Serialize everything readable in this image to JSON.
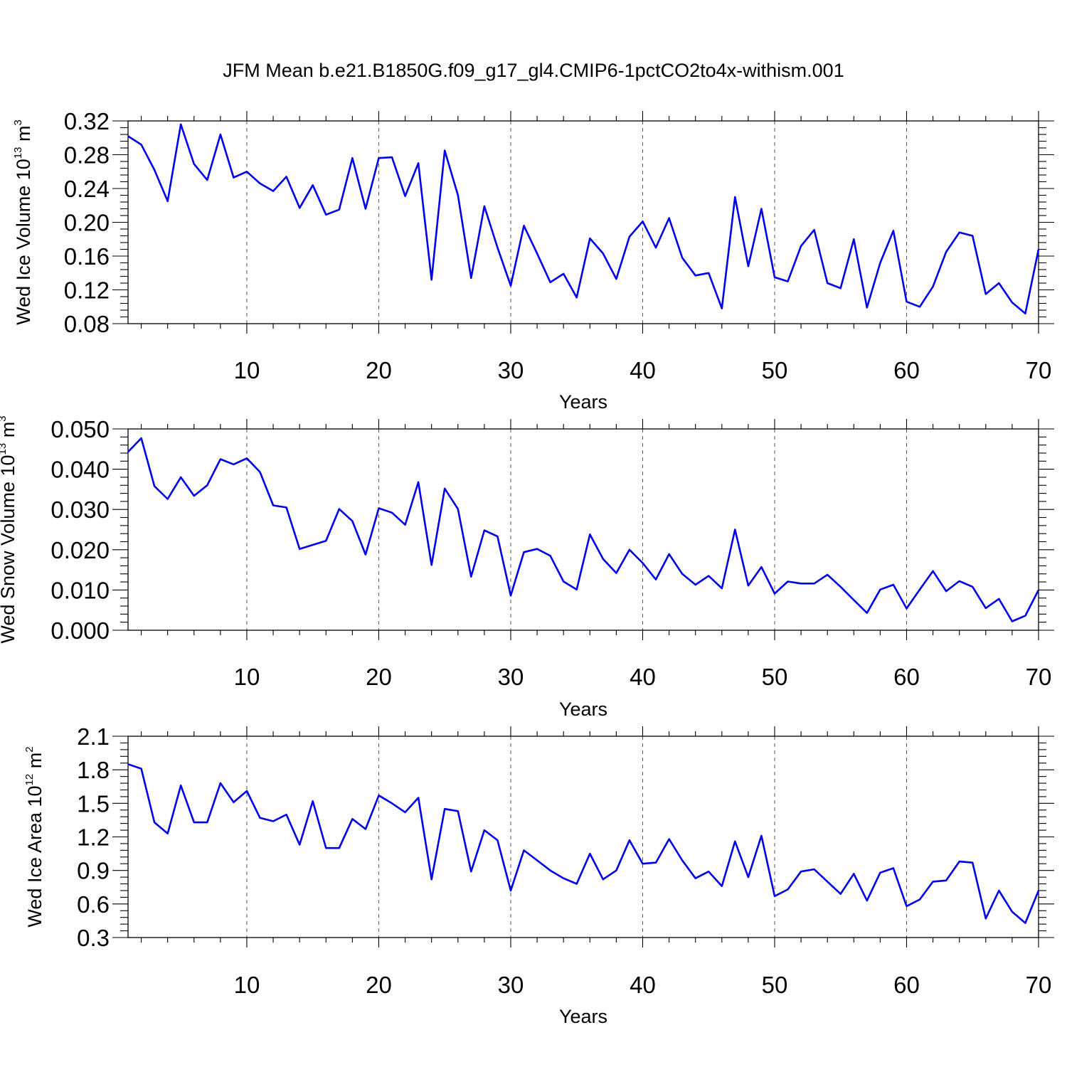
{
  "title": "JFM Mean b.e21.B1850G.f09_g17_gl4.CMIP6-1pctCO2to4x-withism.001",
  "line_color": "#0000ee",
  "chart_data": [
    {
      "type": "line",
      "ylabel": "Wed Ice Volume 10",
      "ylabel_exp": "13",
      "ylabel_unit": " m",
      "ylabel_unit_exp": "3",
      "xlabel": "Years",
      "xlim": [
        1,
        70
      ],
      "ylim": [
        0.08,
        0.32
      ],
      "x_ticks": [
        10,
        20,
        30,
        40,
        50,
        60,
        70
      ],
      "y_ticks": [
        "0.08",
        "0.12",
        "0.16",
        "0.20",
        "0.24",
        "0.28",
        "0.32"
      ],
      "grid": "dashed vertical at x ticks",
      "x": [
        1,
        2,
        3,
        4,
        5,
        6,
        7,
        8,
        9,
        10,
        11,
        12,
        13,
        14,
        15,
        16,
        17,
        18,
        19,
        20,
        21,
        22,
        23,
        24,
        25,
        26,
        27,
        28,
        29,
        30,
        31,
        32,
        33,
        34,
        35,
        36,
        37,
        38,
        39,
        40,
        41,
        42,
        43,
        44,
        45,
        46,
        47,
        48,
        49,
        50,
        51,
        52,
        53,
        54,
        55,
        56,
        57,
        58,
        59,
        60,
        61,
        62,
        63,
        64,
        65,
        66,
        67,
        68,
        69,
        70
      ],
      "values": [
        0.302,
        0.292,
        0.262,
        0.225,
        0.316,
        0.269,
        0.25,
        0.304,
        0.253,
        0.26,
        0.246,
        0.237,
        0.254,
        0.217,
        0.244,
        0.209,
        0.215,
        0.276,
        0.216,
        0.276,
        0.277,
        0.231,
        0.27,
        0.132,
        0.285,
        0.232,
        0.134,
        0.219,
        0.17,
        0.125,
        0.196,
        0.163,
        0.129,
        0.139,
        0.111,
        0.181,
        0.163,
        0.133,
        0.183,
        0.201,
        0.17,
        0.205,
        0.158,
        0.137,
        0.14,
        0.098,
        0.23,
        0.148,
        0.216,
        0.135,
        0.13,
        0.172,
        0.191,
        0.128,
        0.122,
        0.18,
        0.099,
        0.152,
        0.19,
        0.106,
        0.1,
        0.124,
        0.165,
        0.188,
        0.184,
        0.115,
        0.128,
        0.105,
        0.092,
        0.168
      ]
    },
    {
      "type": "line",
      "ylabel": "Wed Snow Volume 10",
      "ylabel_exp": "13",
      "ylabel_unit": " m",
      "ylabel_unit_exp": "3",
      "xlabel": "Years",
      "xlim": [
        1,
        70
      ],
      "ylim": [
        0.0,
        0.05
      ],
      "x_ticks": [
        10,
        20,
        30,
        40,
        50,
        60,
        70
      ],
      "y_ticks": [
        "0.000",
        "0.010",
        "0.020",
        "0.030",
        "0.040",
        "0.050"
      ],
      "grid": "dashed vertical at x ticks",
      "x": [
        1,
        2,
        3,
        4,
        5,
        6,
        7,
        8,
        9,
        10,
        11,
        12,
        13,
        14,
        15,
        16,
        17,
        18,
        19,
        20,
        21,
        22,
        23,
        24,
        25,
        26,
        27,
        28,
        29,
        30,
        31,
        32,
        33,
        34,
        35,
        36,
        37,
        38,
        39,
        40,
        41,
        42,
        43,
        44,
        45,
        46,
        47,
        48,
        49,
        50,
        51,
        52,
        53,
        54,
        55,
        56,
        57,
        58,
        59,
        60,
        61,
        62,
        63,
        64,
        65,
        66,
        67,
        68,
        69,
        70
      ],
      "values": [
        0.0443,
        0.0477,
        0.0358,
        0.0326,
        0.038,
        0.0334,
        0.036,
        0.0425,
        0.0412,
        0.0427,
        0.0393,
        0.031,
        0.0305,
        0.0202,
        0.0212,
        0.0222,
        0.0301,
        0.0271,
        0.0188,
        0.0303,
        0.0292,
        0.0262,
        0.0368,
        0.0162,
        0.0352,
        0.0301,
        0.0133,
        0.0248,
        0.0233,
        0.0086,
        0.0194,
        0.0202,
        0.0185,
        0.0121,
        0.0101,
        0.0238,
        0.0177,
        0.0142,
        0.02,
        0.0167,
        0.0126,
        0.0189,
        0.014,
        0.0113,
        0.0135,
        0.0104,
        0.025,
        0.0111,
        0.0157,
        0.0091,
        0.0121,
        0.0116,
        0.0116,
        0.0138,
        0.0108,
        0.0075,
        0.0043,
        0.0101,
        0.0113,
        0.0054,
        0.0101,
        0.0147,
        0.0097,
        0.0122,
        0.0108,
        0.0055,
        0.0078,
        0.0022,
        0.0036,
        0.01
      ]
    },
    {
      "type": "line",
      "ylabel": "Wed Ice Area 10",
      "ylabel_exp": "12",
      "ylabel_unit": " m",
      "ylabel_unit_exp": "2",
      "xlabel": "Years",
      "xlim": [
        1,
        70
      ],
      "ylim": [
        0.3,
        2.1
      ],
      "x_ticks": [
        10,
        20,
        30,
        40,
        50,
        60,
        70
      ],
      "y_ticks": [
        "0.3",
        "0.6",
        "0.9",
        "1.2",
        "1.5",
        "1.8",
        "2.1"
      ],
      "grid": "dashed vertical at x ticks",
      "x": [
        1,
        2,
        3,
        4,
        5,
        6,
        7,
        8,
        9,
        10,
        11,
        12,
        13,
        14,
        15,
        16,
        17,
        18,
        19,
        20,
        21,
        22,
        23,
        24,
        25,
        26,
        27,
        28,
        29,
        30,
        31,
        32,
        33,
        34,
        35,
        36,
        37,
        38,
        39,
        40,
        41,
        42,
        43,
        44,
        45,
        46,
        47,
        48,
        49,
        50,
        51,
        52,
        53,
        54,
        55,
        56,
        57,
        58,
        59,
        60,
        61,
        62,
        63,
        64,
        65,
        66,
        67,
        68,
        69,
        70
      ],
      "values": [
        1.85,
        1.81,
        1.33,
        1.23,
        1.66,
        1.33,
        1.33,
        1.68,
        1.51,
        1.61,
        1.37,
        1.34,
        1.4,
        1.13,
        1.52,
        1.1,
        1.1,
        1.36,
        1.27,
        1.57,
        1.5,
        1.42,
        1.55,
        0.82,
        1.45,
        1.43,
        0.89,
        1.26,
        1.17,
        0.72,
        1.08,
        0.99,
        0.9,
        0.83,
        0.78,
        1.05,
        0.82,
        0.9,
        1.17,
        0.96,
        0.97,
        1.18,
        0.99,
        0.83,
        0.89,
        0.76,
        1.16,
        0.84,
        1.21,
        0.67,
        0.73,
        0.89,
        0.91,
        0.8,
        0.69,
        0.87,
        0.63,
        0.88,
        0.92,
        0.58,
        0.64,
        0.8,
        0.81,
        0.98,
        0.97,
        0.47,
        0.72,
        0.53,
        0.43,
        0.72
      ]
    }
  ]
}
